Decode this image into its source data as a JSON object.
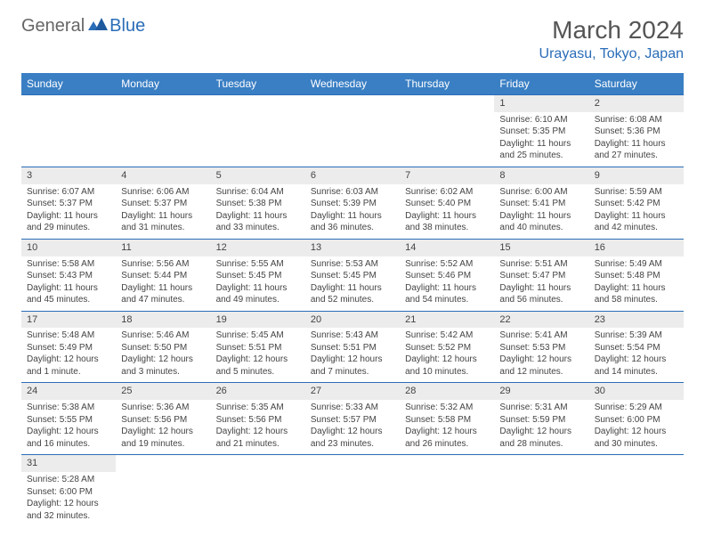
{
  "logo": {
    "general": "General",
    "blue": "Blue"
  },
  "title": "March 2024",
  "location": "Urayasu, Tokyo, Japan",
  "colors": {
    "header_bg": "#3a7fc4",
    "accent": "#2a6db8",
    "shaded": "#ececec",
    "text": "#444444"
  },
  "weekdays": [
    "Sunday",
    "Monday",
    "Tuesday",
    "Wednesday",
    "Thursday",
    "Friday",
    "Saturday"
  ],
  "weeks": [
    [
      null,
      null,
      null,
      null,
      null,
      {
        "n": "1",
        "sr": "Sunrise: 6:10 AM",
        "ss": "Sunset: 5:35 PM",
        "dl": "Daylight: 11 hours and 25 minutes."
      },
      {
        "n": "2",
        "sr": "Sunrise: 6:08 AM",
        "ss": "Sunset: 5:36 PM",
        "dl": "Daylight: 11 hours and 27 minutes."
      }
    ],
    [
      {
        "n": "3",
        "sr": "Sunrise: 6:07 AM",
        "ss": "Sunset: 5:37 PM",
        "dl": "Daylight: 11 hours and 29 minutes."
      },
      {
        "n": "4",
        "sr": "Sunrise: 6:06 AM",
        "ss": "Sunset: 5:37 PM",
        "dl": "Daylight: 11 hours and 31 minutes."
      },
      {
        "n": "5",
        "sr": "Sunrise: 6:04 AM",
        "ss": "Sunset: 5:38 PM",
        "dl": "Daylight: 11 hours and 33 minutes."
      },
      {
        "n": "6",
        "sr": "Sunrise: 6:03 AM",
        "ss": "Sunset: 5:39 PM",
        "dl": "Daylight: 11 hours and 36 minutes."
      },
      {
        "n": "7",
        "sr": "Sunrise: 6:02 AM",
        "ss": "Sunset: 5:40 PM",
        "dl": "Daylight: 11 hours and 38 minutes."
      },
      {
        "n": "8",
        "sr": "Sunrise: 6:00 AM",
        "ss": "Sunset: 5:41 PM",
        "dl": "Daylight: 11 hours and 40 minutes."
      },
      {
        "n": "9",
        "sr": "Sunrise: 5:59 AM",
        "ss": "Sunset: 5:42 PM",
        "dl": "Daylight: 11 hours and 42 minutes."
      }
    ],
    [
      {
        "n": "10",
        "sr": "Sunrise: 5:58 AM",
        "ss": "Sunset: 5:43 PM",
        "dl": "Daylight: 11 hours and 45 minutes."
      },
      {
        "n": "11",
        "sr": "Sunrise: 5:56 AM",
        "ss": "Sunset: 5:44 PM",
        "dl": "Daylight: 11 hours and 47 minutes."
      },
      {
        "n": "12",
        "sr": "Sunrise: 5:55 AM",
        "ss": "Sunset: 5:45 PM",
        "dl": "Daylight: 11 hours and 49 minutes."
      },
      {
        "n": "13",
        "sr": "Sunrise: 5:53 AM",
        "ss": "Sunset: 5:45 PM",
        "dl": "Daylight: 11 hours and 52 minutes."
      },
      {
        "n": "14",
        "sr": "Sunrise: 5:52 AM",
        "ss": "Sunset: 5:46 PM",
        "dl": "Daylight: 11 hours and 54 minutes."
      },
      {
        "n": "15",
        "sr": "Sunrise: 5:51 AM",
        "ss": "Sunset: 5:47 PM",
        "dl": "Daylight: 11 hours and 56 minutes."
      },
      {
        "n": "16",
        "sr": "Sunrise: 5:49 AM",
        "ss": "Sunset: 5:48 PM",
        "dl": "Daylight: 11 hours and 58 minutes."
      }
    ],
    [
      {
        "n": "17",
        "sr": "Sunrise: 5:48 AM",
        "ss": "Sunset: 5:49 PM",
        "dl": "Daylight: 12 hours and 1 minute."
      },
      {
        "n": "18",
        "sr": "Sunrise: 5:46 AM",
        "ss": "Sunset: 5:50 PM",
        "dl": "Daylight: 12 hours and 3 minutes."
      },
      {
        "n": "19",
        "sr": "Sunrise: 5:45 AM",
        "ss": "Sunset: 5:51 PM",
        "dl": "Daylight: 12 hours and 5 minutes."
      },
      {
        "n": "20",
        "sr": "Sunrise: 5:43 AM",
        "ss": "Sunset: 5:51 PM",
        "dl": "Daylight: 12 hours and 7 minutes."
      },
      {
        "n": "21",
        "sr": "Sunrise: 5:42 AM",
        "ss": "Sunset: 5:52 PM",
        "dl": "Daylight: 12 hours and 10 minutes."
      },
      {
        "n": "22",
        "sr": "Sunrise: 5:41 AM",
        "ss": "Sunset: 5:53 PM",
        "dl": "Daylight: 12 hours and 12 minutes."
      },
      {
        "n": "23",
        "sr": "Sunrise: 5:39 AM",
        "ss": "Sunset: 5:54 PM",
        "dl": "Daylight: 12 hours and 14 minutes."
      }
    ],
    [
      {
        "n": "24",
        "sr": "Sunrise: 5:38 AM",
        "ss": "Sunset: 5:55 PM",
        "dl": "Daylight: 12 hours and 16 minutes."
      },
      {
        "n": "25",
        "sr": "Sunrise: 5:36 AM",
        "ss": "Sunset: 5:56 PM",
        "dl": "Daylight: 12 hours and 19 minutes."
      },
      {
        "n": "26",
        "sr": "Sunrise: 5:35 AM",
        "ss": "Sunset: 5:56 PM",
        "dl": "Daylight: 12 hours and 21 minutes."
      },
      {
        "n": "27",
        "sr": "Sunrise: 5:33 AM",
        "ss": "Sunset: 5:57 PM",
        "dl": "Daylight: 12 hours and 23 minutes."
      },
      {
        "n": "28",
        "sr": "Sunrise: 5:32 AM",
        "ss": "Sunset: 5:58 PM",
        "dl": "Daylight: 12 hours and 26 minutes."
      },
      {
        "n": "29",
        "sr": "Sunrise: 5:31 AM",
        "ss": "Sunset: 5:59 PM",
        "dl": "Daylight: 12 hours and 28 minutes."
      },
      {
        "n": "30",
        "sr": "Sunrise: 5:29 AM",
        "ss": "Sunset: 6:00 PM",
        "dl": "Daylight: 12 hours and 30 minutes."
      }
    ],
    [
      {
        "n": "31",
        "sr": "Sunrise: 5:28 AM",
        "ss": "Sunset: 6:00 PM",
        "dl": "Daylight: 12 hours and 32 minutes."
      },
      null,
      null,
      null,
      null,
      null,
      null
    ]
  ]
}
